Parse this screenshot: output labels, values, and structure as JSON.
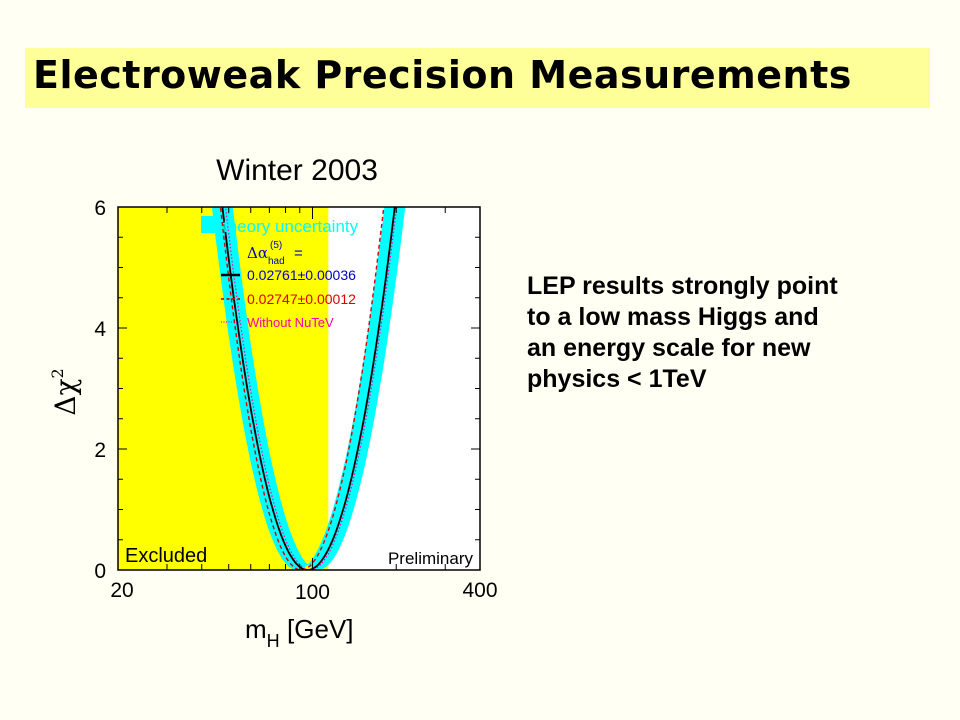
{
  "slide": {
    "title": "Electroweak Precision Measurements",
    "note_lines": [
      "LEP results strongly point",
      "to a low mass Higgs and",
      "an energy scale for new",
      "physics < 1TeV"
    ]
  },
  "colors": {
    "background": "#fffff3",
    "title_band": "#ffff99",
    "excluded": "#ffff00",
    "band": "#00ffff",
    "curve_main": "#000000",
    "curve_red": "#dd0000",
    "curve_pink": "#ff00aa",
    "legend_blue": "#0000cc"
  },
  "chart_data": {
    "type": "line",
    "title": "Winter 2003",
    "xlabel_main": "m",
    "xlabel_sub": "H",
    "xlabel_unit": "[GeV]",
    "ylabel_base": "Δχ",
    "ylabel_sup": "2",
    "x_scale": "log",
    "xlim": [
      20,
      400
    ],
    "ylim": [
      0,
      6
    ],
    "x_ticks": [
      20,
      100,
      400
    ],
    "y_ticks": [
      0,
      2,
      4,
      6
    ],
    "excluded_region": [
      20,
      114
    ],
    "excluded_label": "Excluded",
    "corner_label": "Preliminary",
    "legend": {
      "band_label": "theory uncertainty",
      "alpha_label": "Δα",
      "alpha_sup": "(5)",
      "alpha_sub": "had",
      "equals": "=",
      "entries": [
        {
          "label": "0.02761±0.00036",
          "style": "solid",
          "color": "#0000cc"
        },
        {
          "label": "0.02747±0.00012",
          "style": "dashed",
          "color": "#dd0000"
        },
        {
          "label": "Without NuTeV",
          "style": "dotted",
          "color": "#ff00aa"
        }
      ]
    },
    "series": [
      {
        "name": "0.02761±0.00036",
        "min_x": 96,
        "min_y": 0,
        "curvature": 6.1,
        "band_halfwidth": 0.15
      },
      {
        "name": "0.02747±0.00012",
        "min_x": 91,
        "min_y": 0,
        "curvature": 6.8
      },
      {
        "name": "Without NuTeV",
        "min_x": 98,
        "min_y": 0,
        "curvature": 6.2
      }
    ]
  }
}
